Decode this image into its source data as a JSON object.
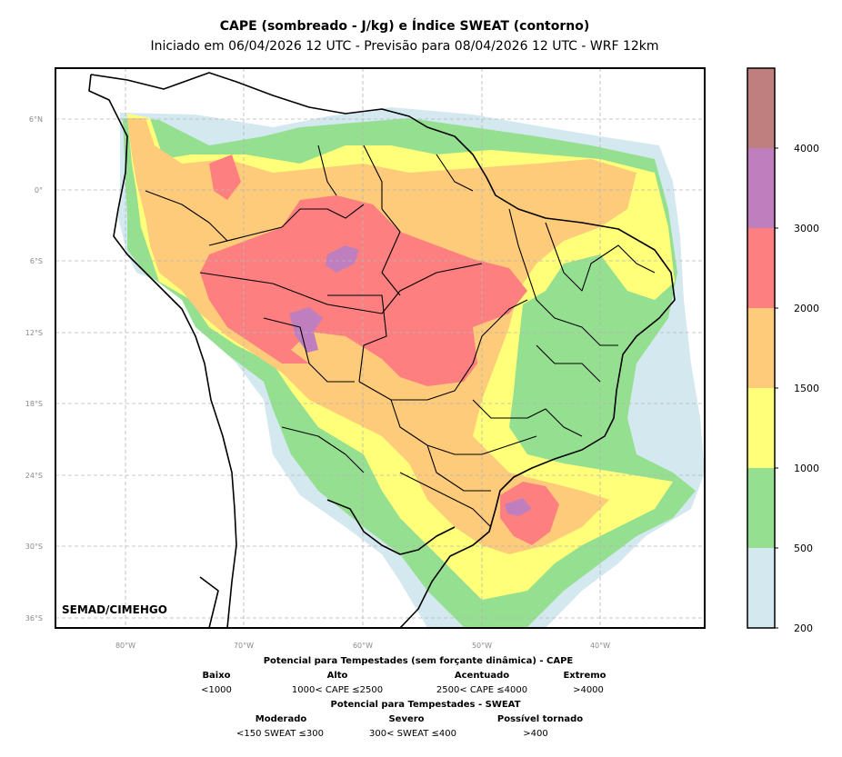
{
  "title": {
    "main": "CAPE (sombreado - J/kg) e Índice SWEAT (contorno)",
    "sub": "Iniciado em 06/04/2026 12 UTC - Previsão para 08/04/2026 12 UTC - WRF 12km"
  },
  "credit": "SEMAD/CIMEHGO",
  "axes": {
    "lat_ticks": [
      "6°N",
      "0°",
      "6°S",
      "12°S",
      "18°S",
      "24°S",
      "30°S",
      "36°S"
    ],
    "lon_ticks": [
      "80°W",
      "70°W",
      "60°W",
      "50°W",
      "40°W"
    ]
  },
  "colorbar": {
    "ticks": [
      "200",
      "500",
      "1000",
      "1500",
      "2000",
      "3000",
      "4000"
    ],
    "bins": [
      {
        "from": 200,
        "to": 500,
        "color": "#d3e9ef"
      },
      {
        "from": 500,
        "to": 1000,
        "color": "#95e090"
      },
      {
        "from": 1000,
        "to": 1500,
        "color": "#ffff7a"
      },
      {
        "from": 1500,
        "to": 2000,
        "color": "#fdcb7a"
      },
      {
        "from": 2000,
        "to": 3000,
        "color": "#fd7f7f"
      },
      {
        "from": 3000,
        "to": 4000,
        "color": "#bf7fbf"
      },
      {
        "from": 4000,
        "to": 5000,
        "color": "#bf7f7f"
      }
    ]
  },
  "legend": {
    "cape_title": "Potencial para Tempestades (sem forçante dinâmica) - CAPE",
    "cape_levels": [
      {
        "name": "Baixo",
        "range": "<1000"
      },
      {
        "name": "Alto",
        "range": "1000< CAPE ≤2500"
      },
      {
        "name": "Acentuado",
        "range": "2500< CAPE ≤4000"
      },
      {
        "name": "Extremo",
        "range": ">4000"
      }
    ],
    "sweat_title": "Potencial para Tempestades - SWEAT",
    "sweat_levels": [
      {
        "name": "Moderado",
        "range": "<150 SWEAT ≤300"
      },
      {
        "name": "Severo",
        "range": "300< SWEAT ≤400"
      },
      {
        "name": "Possível tornado",
        "range": ">400"
      }
    ]
  },
  "colors": {
    "c200": "#d3e9ef",
    "c500": "#95e090",
    "c1000": "#ffff7a",
    "c1500": "#fdcb7a",
    "c2000": "#fd7f7f",
    "c3000": "#bf7fbf",
    "c4000": "#bf7f7f"
  }
}
